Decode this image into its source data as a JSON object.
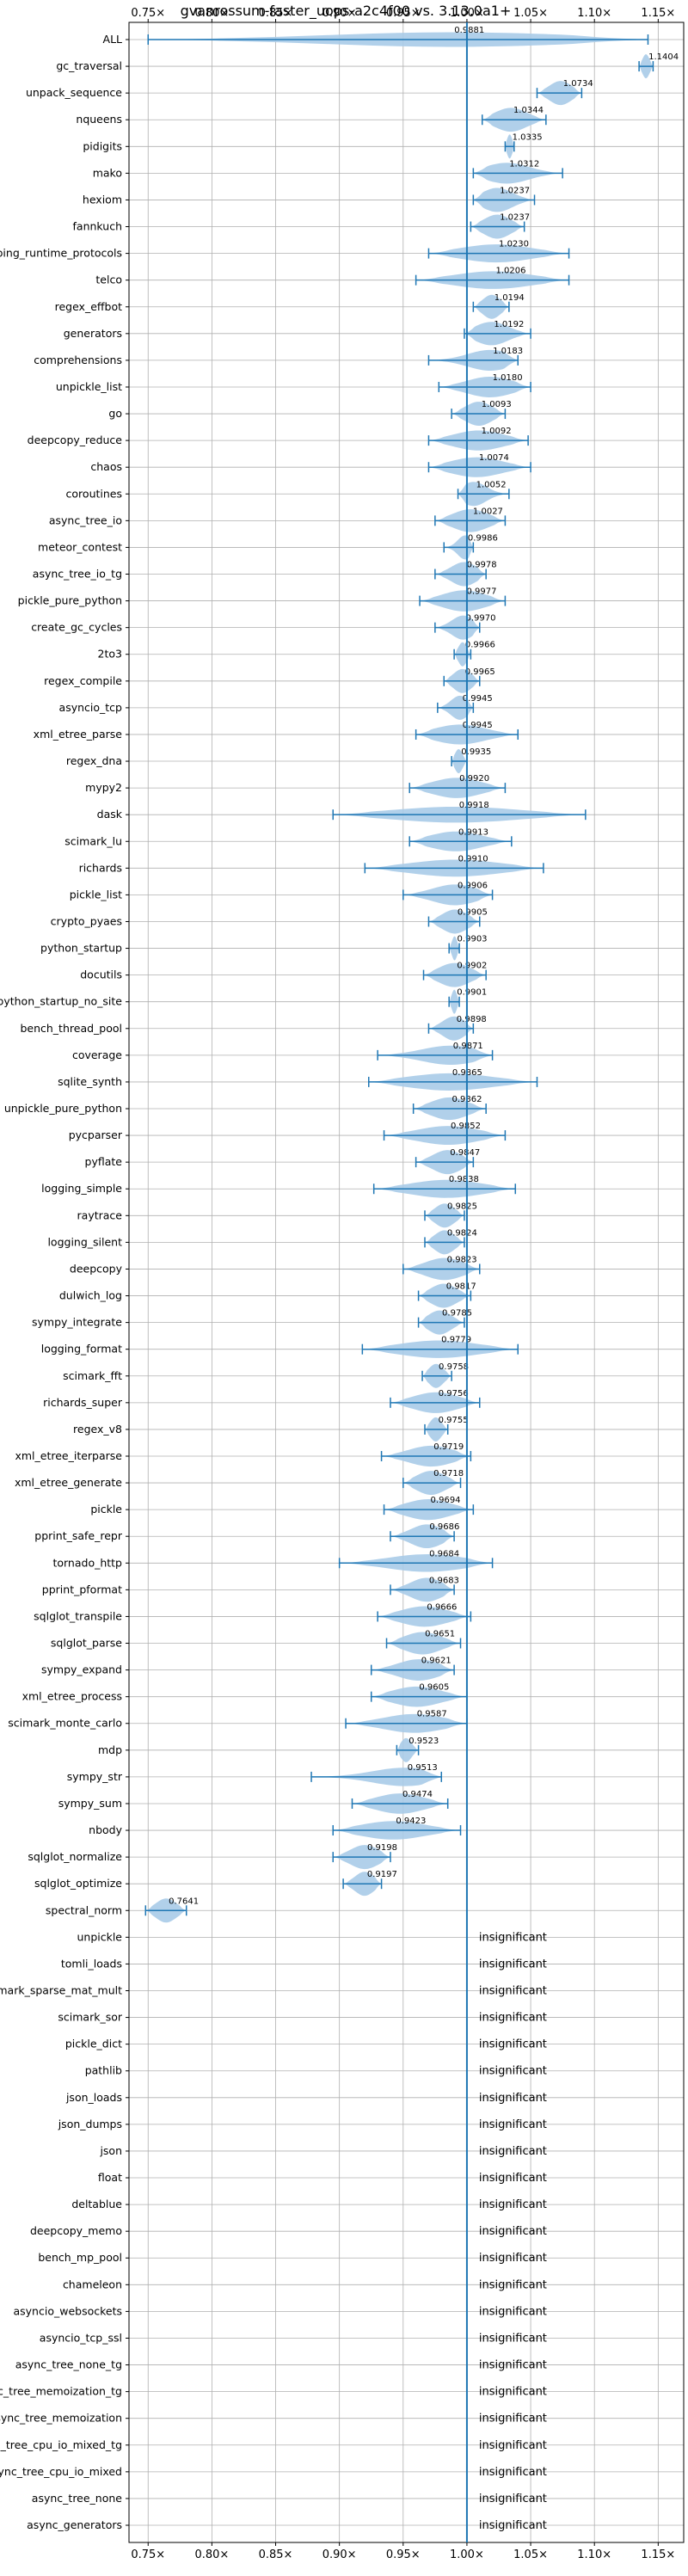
{
  "chart_data": {
    "type": "violin",
    "title": "gvanrossum-faster_uops-a2c4f00 vs. 3.13.0a1+",
    "xlim": [
      0.735,
      1.17
    ],
    "x_ticks": [
      0.75,
      0.8,
      0.85,
      0.9,
      0.95,
      1.0,
      1.05,
      1.1,
      1.15
    ],
    "x_tick_labels": [
      "0.75×",
      "0.80×",
      "0.85×",
      "0.90×",
      "0.95×",
      "1.00×",
      "1.05×",
      "1.10×",
      "1.15×"
    ],
    "reference_line": 1.0,
    "grid": true,
    "colors": {
      "violin": "#a9cbe8",
      "line": "#1f77b4"
    },
    "insignificant_label": "insignificant",
    "benchmarks": [
      {
        "name": "ALL",
        "value": 0.9881,
        "label": "0.9881",
        "min": 0.75,
        "max": 1.142
      },
      {
        "name": "gc_traversal",
        "value": 1.1404,
        "label": "1.1404",
        "min": 1.135,
        "max": 1.146
      },
      {
        "name": "unpack_sequence",
        "value": 1.0734,
        "label": "1.0734",
        "min": 1.055,
        "max": 1.09
      },
      {
        "name": "nqueens",
        "value": 1.0344,
        "label": "1.0344",
        "min": 1.012,
        "max": 1.062
      },
      {
        "name": "pidigits",
        "value": 1.0335,
        "label": "1.0335",
        "min": 1.03,
        "max": 1.037
      },
      {
        "name": "mako",
        "value": 1.0312,
        "label": "1.0312",
        "min": 1.005,
        "max": 1.075
      },
      {
        "name": "hexiom",
        "value": 1.0237,
        "label": "1.0237",
        "min": 1.005,
        "max": 1.053
      },
      {
        "name": "fannkuch",
        "value": 1.0237,
        "label": "1.0237",
        "min": 1.003,
        "max": 1.045
      },
      {
        "name": "typing_runtime_protocols",
        "value": 1.023,
        "label": "1.0230",
        "min": 0.97,
        "max": 1.08
      },
      {
        "name": "telco",
        "value": 1.0206,
        "label": "1.0206",
        "min": 0.96,
        "max": 1.08
      },
      {
        "name": "regex_effbot",
        "value": 1.0194,
        "label": "1.0194",
        "min": 1.005,
        "max": 1.033
      },
      {
        "name": "generators",
        "value": 1.0192,
        "label": "1.0192",
        "min": 0.998,
        "max": 1.05
      },
      {
        "name": "comprehensions",
        "value": 1.0183,
        "label": "1.0183",
        "min": 0.97,
        "max": 1.04
      },
      {
        "name": "unpickle_list",
        "value": 1.018,
        "label": "1.0180",
        "min": 0.978,
        "max": 1.05
      },
      {
        "name": "go",
        "value": 1.0093,
        "label": "1.0093",
        "min": 0.988,
        "max": 1.03
      },
      {
        "name": "deepcopy_reduce",
        "value": 1.0092,
        "label": "1.0092",
        "min": 0.97,
        "max": 1.048
      },
      {
        "name": "chaos",
        "value": 1.0074,
        "label": "1.0074",
        "min": 0.97,
        "max": 1.05
      },
      {
        "name": "coroutines",
        "value": 1.0052,
        "label": "1.0052",
        "min": 0.993,
        "max": 1.033
      },
      {
        "name": "async_tree_io",
        "value": 1.0027,
        "label": "1.0027",
        "min": 0.975,
        "max": 1.03
      },
      {
        "name": "meteor_contest",
        "value": 0.9986,
        "label": "0.9986",
        "min": 0.982,
        "max": 1.005
      },
      {
        "name": "async_tree_io_tg",
        "value": 0.9978,
        "label": "0.9978",
        "min": 0.975,
        "max": 1.015
      },
      {
        "name": "pickle_pure_python",
        "value": 0.9977,
        "label": "0.9977",
        "min": 0.963,
        "max": 1.03
      },
      {
        "name": "create_gc_cycles",
        "value": 0.997,
        "label": "0.9970",
        "min": 0.975,
        "max": 1.01
      },
      {
        "name": "2to3",
        "value": 0.9966,
        "label": "0.9966",
        "min": 0.99,
        "max": 1.003
      },
      {
        "name": "regex_compile",
        "value": 0.9965,
        "label": "0.9965",
        "min": 0.982,
        "max": 1.01
      },
      {
        "name": "asyncio_tcp",
        "value": 0.9945,
        "label": "0.9945",
        "min": 0.977,
        "max": 1.005
      },
      {
        "name": "xml_etree_parse",
        "value": 0.9945,
        "label": "0.9945",
        "min": 0.96,
        "max": 1.04
      },
      {
        "name": "regex_dna",
        "value": 0.9935,
        "label": "0.9935",
        "min": 0.988,
        "max": 1.0
      },
      {
        "name": "mypy2",
        "value": 0.992,
        "label": "0.9920",
        "min": 0.955,
        "max": 1.03
      },
      {
        "name": "dask",
        "value": 0.9918,
        "label": "0.9918",
        "min": 0.895,
        "max": 1.093
      },
      {
        "name": "scimark_lu",
        "value": 0.9913,
        "label": "0.9913",
        "min": 0.955,
        "max": 1.035
      },
      {
        "name": "richards",
        "value": 0.991,
        "label": "0.9910",
        "min": 0.92,
        "max": 1.06
      },
      {
        "name": "pickle_list",
        "value": 0.9906,
        "label": "0.9906",
        "min": 0.95,
        "max": 1.02
      },
      {
        "name": "crypto_pyaes",
        "value": 0.9905,
        "label": "0.9905",
        "min": 0.97,
        "max": 1.01
      },
      {
        "name": "python_startup",
        "value": 0.9903,
        "label": "0.9903",
        "min": 0.986,
        "max": 0.994
      },
      {
        "name": "docutils",
        "value": 0.9902,
        "label": "0.9902",
        "min": 0.966,
        "max": 1.015
      },
      {
        "name": "python_startup_no_site",
        "value": 0.9901,
        "label": "0.9901",
        "min": 0.986,
        "max": 0.994
      },
      {
        "name": "bench_thread_pool",
        "value": 0.9898,
        "label": "0.9898",
        "min": 0.97,
        "max": 1.005
      },
      {
        "name": "coverage",
        "value": 0.9871,
        "label": "0.9871",
        "min": 0.93,
        "max": 1.02
      },
      {
        "name": "sqlite_synth",
        "value": 0.9865,
        "label": "0.9865",
        "min": 0.923,
        "max": 1.055
      },
      {
        "name": "unpickle_pure_python",
        "value": 0.9862,
        "label": "0.9862",
        "min": 0.958,
        "max": 1.015
      },
      {
        "name": "pycparser",
        "value": 0.9852,
        "label": "0.9852",
        "min": 0.935,
        "max": 1.03
      },
      {
        "name": "pyflate",
        "value": 0.9847,
        "label": "0.9847",
        "min": 0.96,
        "max": 1.005
      },
      {
        "name": "logging_simple",
        "value": 0.9838,
        "label": "0.9838",
        "min": 0.927,
        "max": 1.038
      },
      {
        "name": "raytrace",
        "value": 0.9825,
        "label": "0.9825",
        "min": 0.967,
        "max": 0.998
      },
      {
        "name": "logging_silent",
        "value": 0.9824,
        "label": "0.9824",
        "min": 0.967,
        "max": 0.998
      },
      {
        "name": "deepcopy",
        "value": 0.9823,
        "label": "0.9823",
        "min": 0.95,
        "max": 1.01
      },
      {
        "name": "dulwich_log",
        "value": 0.9817,
        "label": "0.9817",
        "min": 0.962,
        "max": 1.003
      },
      {
        "name": "sympy_integrate",
        "value": 0.9785,
        "label": "0.9785",
        "min": 0.962,
        "max": 0.998
      },
      {
        "name": "logging_format",
        "value": 0.9779,
        "label": "0.9779",
        "min": 0.918,
        "max": 1.04
      },
      {
        "name": "scimark_fft",
        "value": 0.9758,
        "label": "0.9758",
        "min": 0.965,
        "max": 0.988
      },
      {
        "name": "richards_super",
        "value": 0.9756,
        "label": "0.9756",
        "min": 0.94,
        "max": 1.01
      },
      {
        "name": "regex_v8",
        "value": 0.9755,
        "label": "0.9755",
        "min": 0.967,
        "max": 0.985
      },
      {
        "name": "xml_etree_iterparse",
        "value": 0.9719,
        "label": "0.9719",
        "min": 0.933,
        "max": 1.003
      },
      {
        "name": "xml_etree_generate",
        "value": 0.9718,
        "label": "0.9718",
        "min": 0.95,
        "max": 0.995
      },
      {
        "name": "pickle",
        "value": 0.9694,
        "label": "0.9694",
        "min": 0.935,
        "max": 1.005
      },
      {
        "name": "pprint_safe_repr",
        "value": 0.9686,
        "label": "0.9686",
        "min": 0.94,
        "max": 0.99
      },
      {
        "name": "tornado_http",
        "value": 0.9684,
        "label": "0.9684",
        "min": 0.9,
        "max": 1.02
      },
      {
        "name": "pprint_pformat",
        "value": 0.9683,
        "label": "0.9683",
        "min": 0.94,
        "max": 0.99
      },
      {
        "name": "sqlglot_transpile",
        "value": 0.9666,
        "label": "0.9666",
        "min": 0.93,
        "max": 1.003
      },
      {
        "name": "sqlglot_parse",
        "value": 0.9651,
        "label": "0.9651",
        "min": 0.937,
        "max": 0.995
      },
      {
        "name": "sympy_expand",
        "value": 0.9621,
        "label": "0.9621",
        "min": 0.925,
        "max": 0.99
      },
      {
        "name": "xml_etree_process",
        "value": 0.9605,
        "label": "0.9605",
        "min": 0.925,
        "max": 1.0
      },
      {
        "name": "scimark_monte_carlo",
        "value": 0.9587,
        "label": "0.9587",
        "min": 0.905,
        "max": 1.0
      },
      {
        "name": "mdp",
        "value": 0.9523,
        "label": "0.9523",
        "min": 0.945,
        "max": 0.962
      },
      {
        "name": "sympy_str",
        "value": 0.9513,
        "label": "0.9513",
        "min": 0.878,
        "max": 0.98
      },
      {
        "name": "sympy_sum",
        "value": 0.9474,
        "label": "0.9474",
        "min": 0.91,
        "max": 0.985
      },
      {
        "name": "nbody",
        "value": 0.9423,
        "label": "0.9423",
        "min": 0.895,
        "max": 0.995
      },
      {
        "name": "sqlglot_normalize",
        "value": 0.9198,
        "label": "0.9198",
        "min": 0.895,
        "max": 0.94
      },
      {
        "name": "sqlglot_optimize",
        "value": 0.9197,
        "label": "0.9197",
        "min": 0.903,
        "max": 0.933
      },
      {
        "name": "spectral_norm",
        "value": 0.7641,
        "label": "0.7641",
        "min": 0.748,
        "max": 0.78
      },
      {
        "name": "unpickle",
        "insignificant": true
      },
      {
        "name": "tomli_loads",
        "insignificant": true
      },
      {
        "name": "scimark_sparse_mat_mult",
        "insignificant": true
      },
      {
        "name": "scimark_sor",
        "insignificant": true
      },
      {
        "name": "pickle_dict",
        "insignificant": true
      },
      {
        "name": "pathlib",
        "insignificant": true
      },
      {
        "name": "json_loads",
        "insignificant": true
      },
      {
        "name": "json_dumps",
        "insignificant": true
      },
      {
        "name": "json",
        "insignificant": true
      },
      {
        "name": "float",
        "insignificant": true
      },
      {
        "name": "deltablue",
        "insignificant": true
      },
      {
        "name": "deepcopy_memo",
        "insignificant": true
      },
      {
        "name": "bench_mp_pool",
        "insignificant": true
      },
      {
        "name": "chameleon",
        "insignificant": true
      },
      {
        "name": "asyncio_websockets",
        "insignificant": true
      },
      {
        "name": "asyncio_tcp_ssl",
        "insignificant": true
      },
      {
        "name": "async_tree_none_tg",
        "insignificant": true
      },
      {
        "name": "async_tree_memoization_tg",
        "insignificant": true
      },
      {
        "name": "async_tree_memoization",
        "insignificant": true
      },
      {
        "name": "async_tree_cpu_io_mixed_tg",
        "insignificant": true
      },
      {
        "name": "async_tree_cpu_io_mixed",
        "insignificant": true
      },
      {
        "name": "async_tree_none",
        "insignificant": true
      },
      {
        "name": "async_generators",
        "insignificant": true
      }
    ]
  }
}
